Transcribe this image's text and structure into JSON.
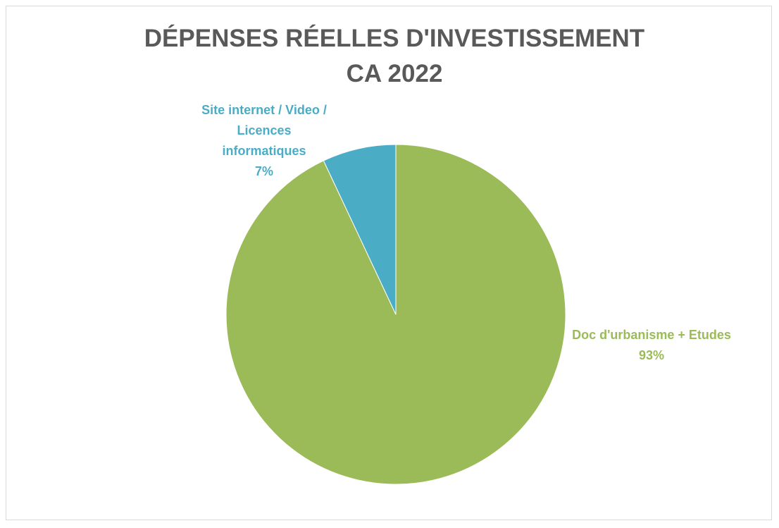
{
  "chart_data": {
    "type": "pie",
    "title": "DÉPENSES RÉELLES D'INVESTISSEMENT CA 2022",
    "categories": [
      "Doc d'urbanisme + Etudes",
      "Site internet / Video / Licences informatiques"
    ],
    "values": [
      93,
      7
    ],
    "value_labels": [
      "93%",
      "7%"
    ],
    "colors": [
      "#9bbb59",
      "#4bacc6"
    ]
  }
}
